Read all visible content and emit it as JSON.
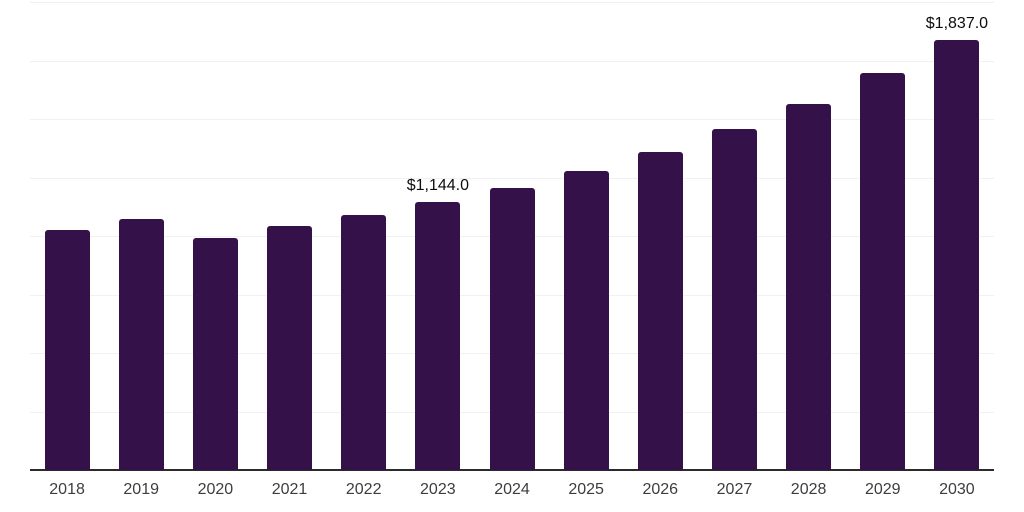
{
  "chart_data": {
    "type": "bar",
    "title": "",
    "xlabel": "",
    "ylabel": "",
    "categories": [
      "2018",
      "2019",
      "2020",
      "2021",
      "2022",
      "2023",
      "2024",
      "2025",
      "2026",
      "2027",
      "2028",
      "2029",
      "2030"
    ],
    "values": [
      1026,
      1073,
      990,
      1044,
      1090,
      1144,
      1205,
      1276,
      1357,
      1456,
      1566,
      1695,
      1837
    ],
    "value_labels": [
      "",
      "",
      "",
      "",
      "",
      "$1,144.0",
      "",
      "",
      "",
      "",
      "",
      "",
      "$1,837.0"
    ],
    "ylim": [
      0,
      2000
    ],
    "grid_step": 250,
    "grid": true,
    "legend": "none",
    "y_axis_tick_labels_visible": false,
    "colors": {
      "bar": "#351149",
      "grid": "#f1f1f4",
      "axis": "#2b2b2b",
      "tick_label": "#3d3d3d",
      "value_label": "#0d0d0d",
      "background": "#ffffff"
    }
  }
}
